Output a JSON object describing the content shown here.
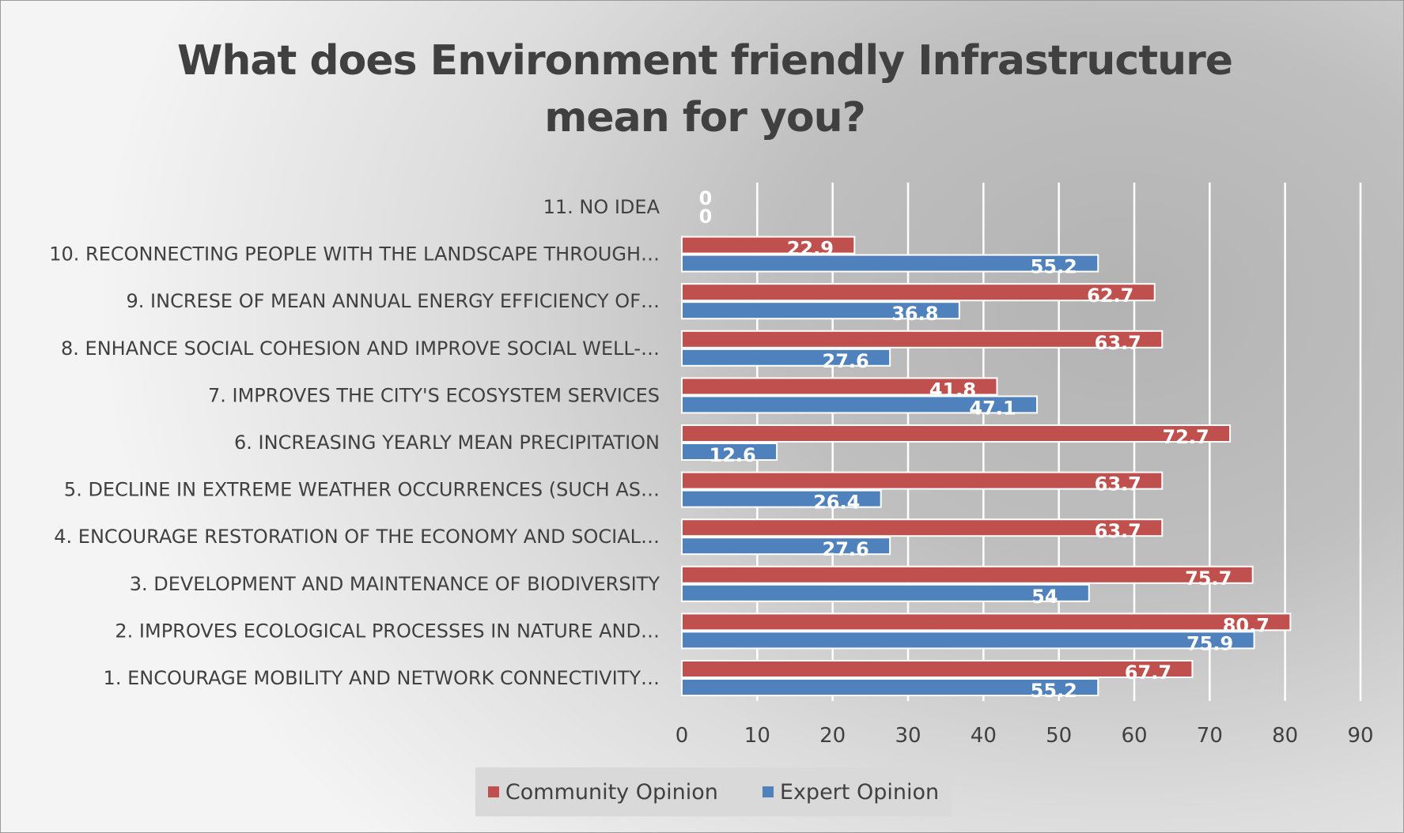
{
  "chart_data": {
    "type": "bar",
    "orientation": "horizontal",
    "title": "What does Environment friendly Infrastructure mean for you?",
    "categories": [
      "1. ENCOURAGE MOBILITY AND NETWORK CONNECTIVITY…",
      "2. IMPROVES ECOLOGICAL PROCESSES IN NATURE AND…",
      "3. DEVELOPMENT AND MAINTENANCE OF BIODIVERSITY",
      "4. ENCOURAGE RESTORATION OF THE ECONOMY AND SOCIAL…",
      "5. DECLINE IN EXTREME WEATHER OCCURRENCES (SUCH AS…",
      "6. INCREASING YEARLY MEAN PRECIPITATION",
      "7. IMPROVES THE CITY'S ECOSYSTEM SERVICES",
      "8. ENHANCE SOCIAL COHESION AND IMPROVE SOCIAL WELL-…",
      "9. INCRESE OF MEAN ANNUAL ENERGY EFFICIENCY OF…",
      "10. RECONNECTING PEOPLE WITH THE LANDSCAPE THROUGH…",
      "11. NO IDEA"
    ],
    "series": [
      {
        "name": "Community Opinion",
        "color": "#c0504d",
        "values": [
          67.7,
          80.7,
          75.7,
          63.7,
          63.7,
          72.7,
          41.8,
          63.7,
          62.7,
          22.9,
          0
        ]
      },
      {
        "name": "Expert Opinion",
        "color": "#4f81bd",
        "values": [
          55.2,
          75.9,
          54,
          27.6,
          26.4,
          12.6,
          47.1,
          27.6,
          36.8,
          55.2,
          0
        ]
      }
    ],
    "xlim": [
      0,
      90
    ],
    "xticks": [
      "0",
      "10",
      "20",
      "30",
      "40",
      "50",
      "60",
      "70",
      "80",
      "90"
    ],
    "grid": true,
    "legend_position": "bottom"
  }
}
